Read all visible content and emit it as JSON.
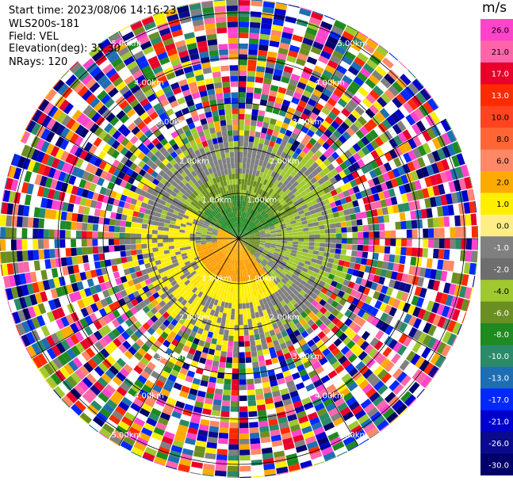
{
  "header": {
    "start_time": "Start time: 2023/08/06 14:16:23",
    "instrument": "WLS200s-181",
    "field": "Field: VEL",
    "elevation": "Elevation(deg): 35.30",
    "nrays": "NRays: 120"
  },
  "colorbar": {
    "unit": "m/s",
    "labels": [
      "26.0",
      "21.0",
      "17.0",
      "13.0",
      "10.0",
      "8.0",
      "6.0",
      "2.0",
      "1.0",
      "0.0",
      "-1.0",
      "-2.0",
      "-4.0",
      "-6.0",
      "-8.0",
      "-10.0",
      "-13.0",
      "-17.0",
      "-21.0",
      "-26.0",
      "-30.0"
    ],
    "colors": [
      "#ff44cc",
      "#ff66aa",
      "#e8002a",
      "#ff2a00",
      "#ff4422",
      "#ff6633",
      "#ff8866",
      "#ffaa00",
      "#ffee00",
      "#ffee88",
      "#808080",
      "#6e6e6e",
      "#a0c830",
      "#6b8e23",
      "#1f8a1f",
      "#2a8a6a",
      "#1e6eb4",
      "#0028ff",
      "#0000cc",
      "#0a0a8c",
      "#00006a"
    ]
  },
  "chart_data": {
    "type": "heatmap",
    "projection": "polar PPI",
    "field": "VEL",
    "units": "m/s",
    "nrays": 120,
    "range_rings_km": [
      1.0,
      2.0,
      3.0,
      4.0,
      5.0
    ],
    "range_ring_labels": [
      "1.00km",
      "2.00km",
      "3.00km",
      "4.00km",
      "5.00km"
    ],
    "max_range_km": 5.3,
    "value_range": [
      -30.0,
      26.0
    ],
    "zones": [
      {
        "range_km": [
          0.0,
          1.0
        ],
        "dominant_values": [
          -6.0,
          -2.0
        ],
        "note": "near-field, north half green (approaching)"
      },
      {
        "range_km": [
          0.0,
          1.2
        ],
        "dominant_values": [
          6.0,
          8.0
        ],
        "note": "near-field, south-east orange (receding)"
      },
      {
        "range_km": [
          0.5,
          2.3
        ],
        "dominant_values": [
          1.0,
          2.0
        ],
        "note": "west and south yellow band"
      },
      {
        "range_km": [
          1.0,
          2.5
        ],
        "dominant_values": [
          -2.0,
          0.0
        ],
        "note": "north-east light green / grey"
      },
      {
        "range_km": [
          2.5,
          5.3
        ],
        "dominant_values": [
          -30.0,
          26.0
        ],
        "note": "noise: full spectrum speckle"
      }
    ]
  }
}
